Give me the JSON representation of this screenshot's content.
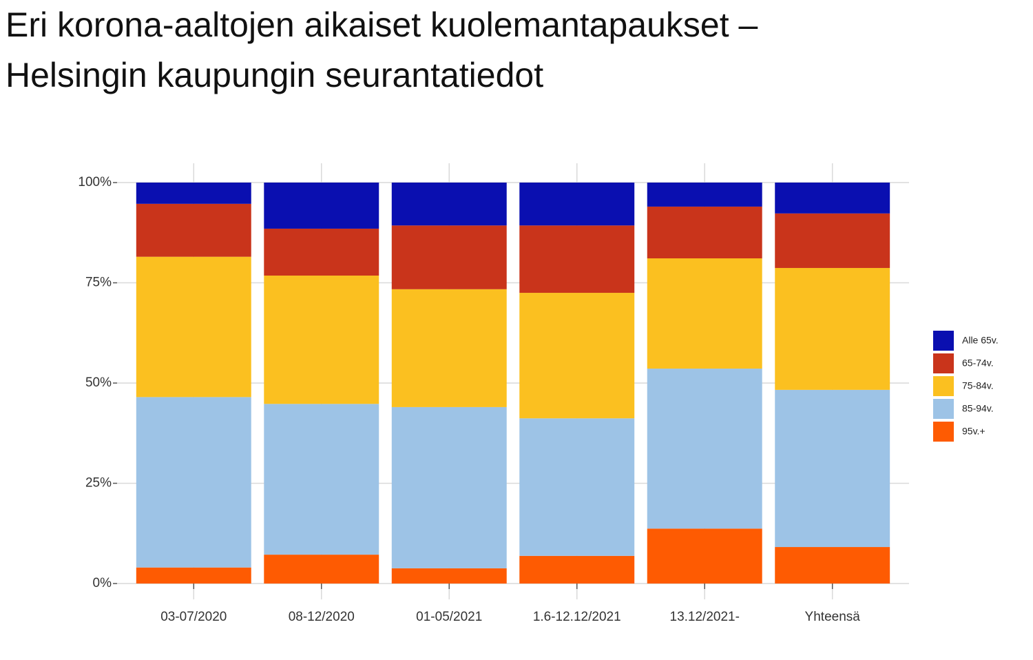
{
  "chart_data": {
    "type": "stacked-bar-percent",
    "title": [
      "Eri korona-aaltojen aikaiset kuolemantapaukset –",
      "Helsingin kaupungin seurantatiedot"
    ],
    "categories": [
      "03-07/2020",
      "08-12/2020",
      "01-05/2021",
      "1.6-12.12/2021",
      "13.12/2021-",
      "Yhteensä"
    ],
    "series": [
      {
        "name": "Alle 65v.",
        "color": "#0a0fb0",
        "values": [
          5.3,
          11.5,
          10.7,
          10.7,
          6.0,
          7.7
        ]
      },
      {
        "name": "65-74v.",
        "color": "#c9341b",
        "values": [
          13.2,
          11.7,
          15.9,
          16.8,
          12.9,
          13.6
        ]
      },
      {
        "name": "75-84v.",
        "color": "#fbc020",
        "values": [
          35,
          32,
          29.4,
          31.3,
          27.5,
          30.4
        ]
      },
      {
        "name": "85-94v.",
        "color": "#9dc3e6",
        "values": [
          42.5,
          37.6,
          40.2,
          34.3,
          39.9,
          39.2
        ]
      },
      {
        "name": "95v.+",
        "color": "#fe5b02",
        "values": [
          4,
          7.2,
          3.8,
          6.9,
          13.7,
          9.1
        ]
      }
    ],
    "ylim": [
      0,
      100
    ],
    "yticks": [
      {
        "value": 0,
        "label": "0%"
      },
      {
        "value": 25,
        "label": "25%"
      },
      {
        "value": 50,
        "label": "50%"
      },
      {
        "value": 75,
        "label": "75%"
      },
      {
        "value": 100,
        "label": "100%"
      }
    ],
    "grid": true,
    "legend": "right"
  }
}
